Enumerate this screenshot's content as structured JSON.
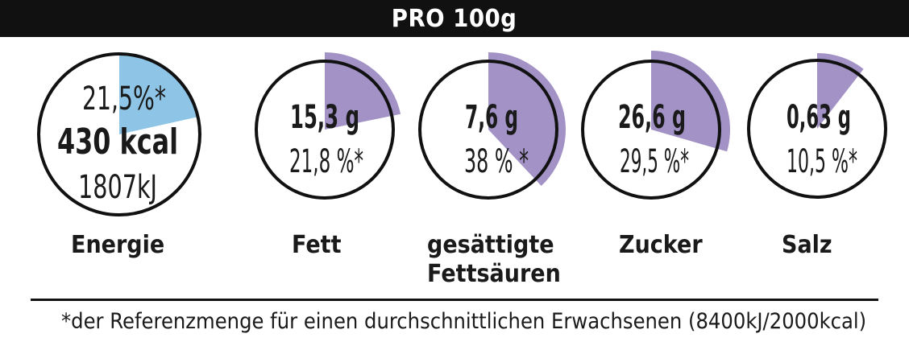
{
  "header": {
    "title": "PRO 100g"
  },
  "colors": {
    "energy_accent": "#8ec5e6",
    "nutrient_accent": "#a292c6",
    "ink": "#111111"
  },
  "nutrients": [
    {
      "id": "energie",
      "label": "Energie",
      "lines": [
        "21,5%*",
        "430 kcal",
        "1807kJ"
      ],
      "percent": 21.5,
      "color": "#8ec5e6"
    },
    {
      "id": "fett",
      "label": "Fett",
      "lines": [
        "15,3 g",
        "21,8 %*"
      ],
      "percent": 21.8,
      "color": "#a292c6"
    },
    {
      "id": "gesaettigte",
      "label": "gesättigte",
      "label2": "Fettsäuren",
      "lines": [
        "7,6 g",
        "38 % *"
      ],
      "percent": 38,
      "color": "#a292c6"
    },
    {
      "id": "zucker",
      "label": "Zucker",
      "lines": [
        "26,6 g",
        "29,5 %*"
      ],
      "percent": 29.5,
      "color": "#a292c6"
    },
    {
      "id": "salz",
      "label": "Salz",
      "lines": [
        "0,63 g",
        "10,5 %*"
      ],
      "percent": 10.5,
      "color": "#a292c6"
    }
  ],
  "footnote": "*der Referenzmenge für einen durchschnittlichen Erwachsenen (8400kJ/2000kcal)"
}
